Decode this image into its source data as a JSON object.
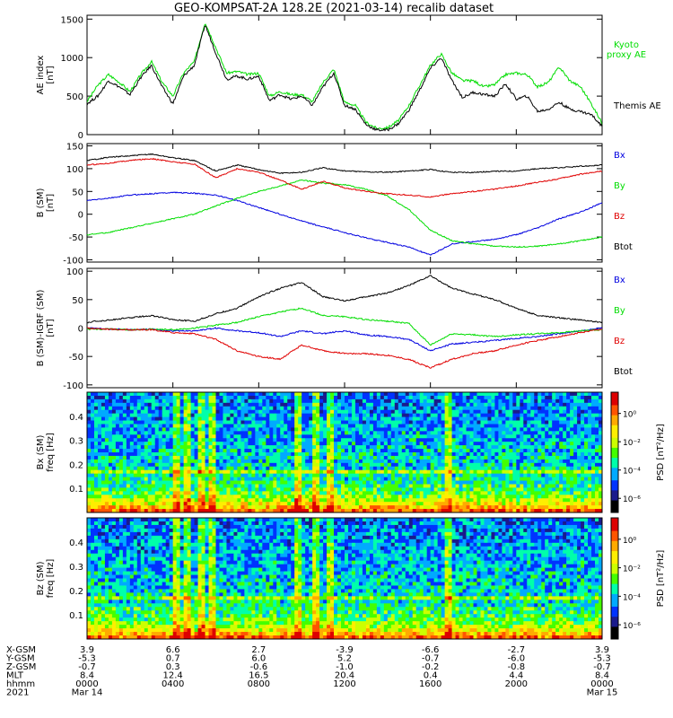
{
  "title": "GEO-KOMPSAT-2A 128.2E (2021-03-14) recalib dataset",
  "colors": {
    "black": "#000000",
    "green": "#00dd00",
    "red": "#e00000",
    "blue": "#0000e0",
    "colorbar": [
      "#000000",
      "#1a1a8c",
      "#0033ff",
      "#00aaff",
      "#00ffaa",
      "#44ff00",
      "#ccff00",
      "#ffee00",
      "#ffaa00",
      "#ff5500",
      "#dd0000",
      "#660000"
    ]
  },
  "time_axis": {
    "xlim_hours": [
      0,
      24
    ],
    "ticks_hours": [
      0,
      4,
      8,
      12,
      16,
      20,
      24
    ],
    "rows": [
      {
        "label": "X-GSM",
        "values": [
          "3.9",
          "6.6",
          "2.7",
          "-3.9",
          "-6.6",
          "-2.7",
          "3.9"
        ]
      },
      {
        "label": "Y-GSM",
        "values": [
          "-5.3",
          "0.7",
          "6.0",
          "5.2",
          "-0.7",
          "-6.0",
          "-5.3"
        ]
      },
      {
        "label": "Z-GSM",
        "values": [
          "-0.7",
          "0.3",
          "-0.6",
          "-1.0",
          "-0.2",
          "-0.8",
          "-0.7"
        ]
      },
      {
        "label": "MLT",
        "values": [
          "8.4",
          "12.4",
          "16.5",
          "20.4",
          "0.4",
          "4.4",
          "8.4"
        ]
      },
      {
        "label": "hhmm",
        "values": [
          "0000",
          "0400",
          "0800",
          "1200",
          "1600",
          "2000",
          "0000"
        ]
      },
      {
        "label": "2021",
        "values": [
          "Mar 14",
          "",
          "",
          "",
          "",
          "",
          "Mar 15"
        ]
      }
    ]
  },
  "chart_data": [
    {
      "type": "line",
      "ylabel": "AE index [nT]",
      "ylim": [
        0,
        1550
      ],
      "yticks": [
        0,
        500,
        1000,
        1500
      ],
      "series": [
        {
          "name": "Kyoto proxy AE",
          "color": "#00dd00",
          "x": [
            0,
            0.5,
            1,
            1.5,
            2,
            2.5,
            3,
            3.5,
            4,
            4.5,
            5,
            5.5,
            6,
            6.5,
            7,
            7.5,
            8,
            8.5,
            9,
            9.5,
            10,
            10.5,
            11,
            11.5,
            12,
            12.5,
            13,
            13.5,
            14,
            14.5,
            15,
            15.5,
            16,
            16.5,
            17,
            17.5,
            18,
            18.5,
            19,
            19.5,
            20,
            20.5,
            21,
            21.5,
            22,
            22.5,
            23,
            23.5,
            24
          ],
          "y": [
            430,
            640,
            780,
            680,
            560,
            780,
            950,
            680,
            500,
            800,
            950,
            1460,
            1130,
            800,
            820,
            780,
            800,
            500,
            560,
            520,
            520,
            430,
            680,
            850,
            420,
            380,
            160,
            80,
            90,
            180,
            380,
            640,
            900,
            1050,
            800,
            700,
            700,
            620,
            650,
            780,
            800,
            780,
            620,
            680,
            880,
            700,
            620,
            400,
            150
          ]
        },
        {
          "name": "Themis AE",
          "color": "#000000",
          "x": [
            0,
            0.5,
            1,
            1.5,
            2,
            2.5,
            3,
            3.5,
            4,
            4.5,
            5,
            5.5,
            6,
            6.5,
            7,
            7.5,
            8,
            8.5,
            9,
            9.5,
            10,
            10.5,
            11,
            11.5,
            12,
            12.5,
            13,
            13.5,
            14,
            14.5,
            15,
            15.5,
            16,
            16.5,
            17,
            17.5,
            18,
            18.5,
            19,
            19.5,
            20,
            20.5,
            21,
            21.5,
            22,
            22.5,
            23,
            23.5,
            24
          ],
          "y": [
            400,
            500,
            700,
            620,
            520,
            740,
            900,
            620,
            400,
            760,
            900,
            1430,
            1060,
            720,
            760,
            720,
            760,
            440,
            520,
            460,
            500,
            380,
            620,
            800,
            380,
            330,
            130,
            60,
            60,
            140,
            320,
            580,
            860,
            1000,
            700,
            480,
            550,
            520,
            500,
            660,
            460,
            500,
            300,
            330,
            420,
            330,
            300,
            260,
            110
          ]
        }
      ]
    },
    {
      "type": "line",
      "ylabel": "B (SM) [nT]",
      "ylim": [
        -105,
        155
      ],
      "yticks": [
        -100,
        -50,
        0,
        50,
        100,
        150
      ],
      "series": [
        {
          "name": "Bx",
          "color": "#0000e0",
          "x": [
            0,
            1,
            2,
            3,
            4,
            5,
            6,
            7,
            8,
            9,
            10,
            11,
            12,
            13,
            14,
            15,
            16,
            17,
            18,
            19,
            20,
            21,
            22,
            23,
            24
          ],
          "y": [
            30,
            35,
            42,
            45,
            48,
            46,
            42,
            30,
            15,
            0,
            -15,
            -28,
            -40,
            -52,
            -62,
            -72,
            -90,
            -65,
            -60,
            -55,
            -45,
            -30,
            -10,
            5,
            25
          ]
        },
        {
          "name": "By",
          "color": "#00dd00",
          "x": [
            0,
            1,
            2,
            3,
            4,
            5,
            6,
            7,
            8,
            9,
            10,
            11,
            12,
            13,
            14,
            15,
            16,
            17,
            18,
            19,
            20,
            21,
            22,
            23,
            24
          ],
          "y": [
            -45,
            -40,
            -30,
            -20,
            -10,
            0,
            18,
            35,
            50,
            62,
            75,
            68,
            65,
            55,
            40,
            10,
            -35,
            -58,
            -65,
            -70,
            -72,
            -70,
            -65,
            -58,
            -50
          ]
        },
        {
          "name": "Bz",
          "color": "#e00000",
          "x": [
            0,
            1,
            2,
            3,
            4,
            5,
            6,
            7,
            8,
            9,
            10,
            11,
            12,
            13,
            14,
            15,
            16,
            17,
            18,
            19,
            20,
            21,
            22,
            23,
            24
          ],
          "y": [
            108,
            112,
            118,
            122,
            115,
            110,
            80,
            100,
            92,
            75,
            55,
            72,
            58,
            50,
            45,
            42,
            38,
            45,
            50,
            55,
            62,
            70,
            78,
            88,
            95
          ]
        },
        {
          "name": "Btot",
          "color": "#000000",
          "x": [
            0,
            1,
            2,
            3,
            4,
            5,
            6,
            7,
            8,
            9,
            10,
            11,
            12,
            13,
            14,
            15,
            16,
            17,
            18,
            19,
            20,
            21,
            22,
            23,
            24
          ],
          "y": [
            118,
            125,
            128,
            132,
            124,
            118,
            95,
            108,
            98,
            90,
            92,
            102,
            95,
            93,
            92,
            95,
            98,
            92,
            92,
            94,
            95,
            100,
            102,
            105,
            108
          ]
        }
      ]
    },
    {
      "type": "line",
      "ylabel": "B (SM)-IGRF (SM) [nT]",
      "ylim": [
        -105,
        105
      ],
      "yticks": [
        -100,
        -50,
        0,
        50,
        100
      ],
      "series": [
        {
          "name": "Bx",
          "color": "#0000e0",
          "x": [
            0,
            1,
            2,
            3,
            4,
            5,
            6,
            7,
            8,
            9,
            10,
            11,
            12,
            13,
            14,
            15,
            16,
            17,
            18,
            19,
            20,
            21,
            22,
            23,
            24
          ],
          "y": [
            0,
            -2,
            -3,
            -2,
            -5,
            -5,
            0,
            -5,
            -8,
            -15,
            -5,
            -10,
            -5,
            -12,
            -15,
            -20,
            -40,
            -28,
            -25,
            -22,
            -18,
            -15,
            -10,
            -5,
            0
          ]
        },
        {
          "name": "By",
          "color": "#00dd00",
          "x": [
            0,
            1,
            2,
            3,
            4,
            5,
            6,
            7,
            8,
            9,
            10,
            11,
            12,
            13,
            14,
            15,
            16,
            17,
            18,
            19,
            20,
            21,
            22,
            23,
            24
          ],
          "y": [
            -2,
            -2,
            -3,
            -2,
            -3,
            0,
            5,
            10,
            20,
            28,
            35,
            22,
            20,
            15,
            12,
            8,
            -30,
            -10,
            -12,
            -15,
            -12,
            -10,
            -8,
            -5,
            -3
          ]
        },
        {
          "name": "Bz",
          "color": "#e00000",
          "x": [
            0,
            1,
            2,
            3,
            4,
            5,
            6,
            7,
            8,
            9,
            10,
            11,
            12,
            13,
            14,
            15,
            16,
            17,
            18,
            19,
            20,
            21,
            22,
            23,
            24
          ],
          "y": [
            0,
            -2,
            -3,
            -3,
            -8,
            -10,
            -20,
            -40,
            -50,
            -55,
            -30,
            -40,
            -45,
            -45,
            -48,
            -55,
            -70,
            -55,
            -45,
            -40,
            -30,
            -22,
            -15,
            -8,
            -2
          ]
        },
        {
          "name": "Btot",
          "color": "#000000",
          "x": [
            0,
            1,
            2,
            3,
            4,
            5,
            6,
            7,
            8,
            9,
            10,
            11,
            12,
            13,
            14,
            15,
            16,
            17,
            18,
            19,
            20,
            21,
            22,
            23,
            24
          ],
          "y": [
            10,
            14,
            18,
            22,
            15,
            12,
            25,
            35,
            55,
            70,
            80,
            55,
            48,
            55,
            62,
            75,
            92,
            70,
            60,
            50,
            35,
            22,
            18,
            14,
            10
          ]
        }
      ]
    },
    {
      "type": "heatmap",
      "ylabel": "Bx (SM) freq [Hz]",
      "ylim": [
        0,
        0.5
      ],
      "yticks": [
        0.1,
        0.2,
        0.3,
        0.4
      ],
      "colorbar_label": "PSD [nT²/Hz]",
      "colorbar_ticks": [
        "10⁰",
        "10⁻²",
        "10⁻⁴",
        "10⁻⁶"
      ],
      "colorbar_range_exp": [
        -7,
        1.5
      ],
      "enhanced_times_hours": [
        4.2,
        4.6,
        5.3,
        5.8,
        9.8,
        10.7,
        11.4,
        16.8
      ],
      "line_freq_hz": 0.167
    },
    {
      "type": "heatmap",
      "ylabel": "Bz (SM) freq [Hz]",
      "ylim": [
        0,
        0.5
      ],
      "yticks": [
        0.1,
        0.2,
        0.3,
        0.4
      ],
      "colorbar_label": "PSD [nT²/Hz]",
      "colorbar_ticks": [
        "10⁰",
        "10⁻²",
        "10⁻⁴",
        "10⁻⁶"
      ],
      "colorbar_range_exp": [
        -7,
        1.5
      ],
      "enhanced_times_hours": [
        4.2,
        4.6,
        5.3,
        5.8,
        9.8,
        10.7,
        11.4,
        16.8
      ],
      "line_freq_hz": 0.167
    }
  ]
}
